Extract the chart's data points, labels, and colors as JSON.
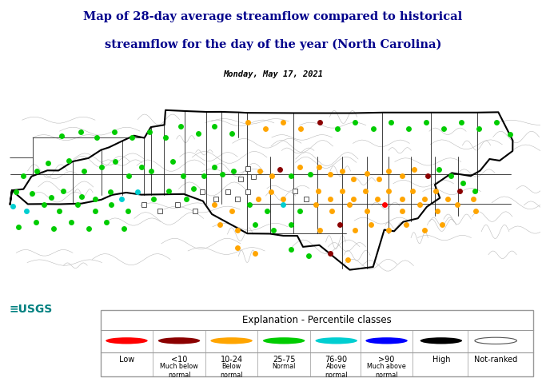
{
  "title_line1": "Map of 28-day average streamflow compared to historical",
  "title_line2": "streamflow for the day of the year (North Carolina)",
  "subtitle": "Monday, May 17, 2021",
  "title_color": "#00008B",
  "background_color": "#ffffff",
  "legend_title": "Explanation - Percentile classes",
  "legend_colors": [
    "#FF0000",
    "#8B0000",
    "#FFA500",
    "#00CC00",
    "#00CED1",
    "#0000FF",
    "#000000",
    "#ffffff"
  ],
  "legend_ranges": [
    "Low",
    "<10",
    "10-24",
    "25-75",
    "76-90",
    ">90",
    "High",
    "Not-ranked"
  ],
  "legend_descs": [
    "",
    "Much below\nnormal",
    "Below\nnormal",
    "Normal",
    "Above\nnormal",
    "Much above\nnormal",
    "",
    ""
  ],
  "map_xlim": [
    -84.4,
    -75.3
  ],
  "map_ylim": [
    33.6,
    36.7
  ],
  "stations": [
    {
      "lon": -84.1,
      "lat": 35.47,
      "color": "#00CC00"
    },
    {
      "lon": -83.87,
      "lat": 35.56,
      "color": "#00CC00"
    },
    {
      "lon": -83.68,
      "lat": 35.69,
      "color": "#00CC00"
    },
    {
      "lon": -83.32,
      "lat": 35.73,
      "color": "#00CC00"
    },
    {
      "lon": -83.06,
      "lat": 35.55,
      "color": "#00CC00"
    },
    {
      "lon": -82.77,
      "lat": 35.62,
      "color": "#00CC00"
    },
    {
      "lon": -82.54,
      "lat": 35.72,
      "color": "#00CC00"
    },
    {
      "lon": -82.3,
      "lat": 35.48,
      "color": "#00CC00"
    },
    {
      "lon": -82.08,
      "lat": 35.62,
      "color": "#00CC00"
    },
    {
      "lon": -81.92,
      "lat": 35.55,
      "color": "#00CC00"
    },
    {
      "lon": -81.55,
      "lat": 35.72,
      "color": "#00CC00"
    },
    {
      "lon": -81.38,
      "lat": 35.48,
      "color": "#00CC00"
    },
    {
      "lon": -81.2,
      "lat": 35.26,
      "color": "#00CC00"
    },
    {
      "lon": -81.02,
      "lat": 35.48,
      "color": "#00CC00"
    },
    {
      "lon": -80.85,
      "lat": 35.62,
      "color": "#00CC00"
    },
    {
      "lon": -80.72,
      "lat": 35.5,
      "color": "#00CC00"
    },
    {
      "lon": -80.52,
      "lat": 35.55,
      "color": "#00CC00"
    },
    {
      "lon": -80.4,
      "lat": 35.42,
      "color": "#ffffff"
    },
    {
      "lon": -80.28,
      "lat": 35.6,
      "color": "#ffffff"
    },
    {
      "lon": -80.18,
      "lat": 35.46,
      "color": "#ffffff"
    },
    {
      "lon": -80.07,
      "lat": 35.55,
      "color": "#FFA500"
    },
    {
      "lon": -79.87,
      "lat": 35.48,
      "color": "#FFA500"
    },
    {
      "lon": -79.73,
      "lat": 35.58,
      "color": "#8B0000"
    },
    {
      "lon": -79.55,
      "lat": 35.48,
      "color": "#00CC00"
    },
    {
      "lon": -79.4,
      "lat": 35.62,
      "color": "#FFA500"
    },
    {
      "lon": -79.22,
      "lat": 35.5,
      "color": "#00CC00"
    },
    {
      "lon": -79.07,
      "lat": 35.62,
      "color": "#FFA500"
    },
    {
      "lon": -78.88,
      "lat": 35.5,
      "color": "#FFA500"
    },
    {
      "lon": -78.68,
      "lat": 35.55,
      "color": "#FFA500"
    },
    {
      "lon": -78.48,
      "lat": 35.42,
      "color": "#FFA500"
    },
    {
      "lon": -78.25,
      "lat": 35.52,
      "color": "#FFA500"
    },
    {
      "lon": -78.05,
      "lat": 35.42,
      "color": "#FFA500"
    },
    {
      "lon": -77.88,
      "lat": 35.55,
      "color": "#FFA500"
    },
    {
      "lon": -77.65,
      "lat": 35.48,
      "color": "#FFA500"
    },
    {
      "lon": -77.45,
      "lat": 35.58,
      "color": "#FFA500"
    },
    {
      "lon": -77.22,
      "lat": 35.48,
      "color": "#8B0000"
    },
    {
      "lon": -77.03,
      "lat": 35.58,
      "color": "#00CC00"
    },
    {
      "lon": -76.82,
      "lat": 35.48,
      "color": "#00CC00"
    },
    {
      "lon": -76.62,
      "lat": 35.35,
      "color": "#00CC00"
    },
    {
      "lon": -76.42,
      "lat": 35.22,
      "color": "#00CC00"
    },
    {
      "lon": -84.22,
      "lat": 35.2,
      "color": "#00CC00"
    },
    {
      "lon": -83.95,
      "lat": 35.18,
      "color": "#00CC00"
    },
    {
      "lon": -83.62,
      "lat": 35.1,
      "color": "#00CC00"
    },
    {
      "lon": -83.42,
      "lat": 35.22,
      "color": "#00CC00"
    },
    {
      "lon": -83.1,
      "lat": 35.12,
      "color": "#00CC00"
    },
    {
      "lon": -82.88,
      "lat": 35.08,
      "color": "#00CC00"
    },
    {
      "lon": -82.62,
      "lat": 35.2,
      "color": "#00CC00"
    },
    {
      "lon": -82.42,
      "lat": 35.08,
      "color": "#00CED1"
    },
    {
      "lon": -82.15,
      "lat": 35.2,
      "color": "#00CED1"
    },
    {
      "lon": -81.88,
      "lat": 35.08,
      "color": "#00CC00"
    },
    {
      "lon": -81.62,
      "lat": 35.22,
      "color": "#00CC00"
    },
    {
      "lon": -81.32,
      "lat": 35.08,
      "color": "#00CC00"
    },
    {
      "lon": -81.05,
      "lat": 35.2,
      "color": "#ffffff"
    },
    {
      "lon": -80.82,
      "lat": 35.08,
      "color": "#ffffff"
    },
    {
      "lon": -80.62,
      "lat": 35.2,
      "color": "#ffffff"
    },
    {
      "lon": -80.45,
      "lat": 35.08,
      "color": "#ffffff"
    },
    {
      "lon": -80.28,
      "lat": 35.2,
      "color": "#ffffff"
    },
    {
      "lon": -80.1,
      "lat": 35.08,
      "color": "#FFA500"
    },
    {
      "lon": -79.88,
      "lat": 35.2,
      "color": "#FFA500"
    },
    {
      "lon": -79.68,
      "lat": 35.08,
      "color": "#FFA500"
    },
    {
      "lon": -79.48,
      "lat": 35.22,
      "color": "#ffffff"
    },
    {
      "lon": -79.28,
      "lat": 35.08,
      "color": "#ffffff"
    },
    {
      "lon": -79.08,
      "lat": 35.22,
      "color": "#FFA500"
    },
    {
      "lon": -78.88,
      "lat": 35.08,
      "color": "#FFA500"
    },
    {
      "lon": -78.68,
      "lat": 35.22,
      "color": "#FFA500"
    },
    {
      "lon": -78.48,
      "lat": 35.08,
      "color": "#FFA500"
    },
    {
      "lon": -78.28,
      "lat": 35.22,
      "color": "#FFA500"
    },
    {
      "lon": -78.08,
      "lat": 35.08,
      "color": "#FFA500"
    },
    {
      "lon": -77.88,
      "lat": 35.22,
      "color": "#FFA500"
    },
    {
      "lon": -77.65,
      "lat": 35.08,
      "color": "#FFA500"
    },
    {
      "lon": -77.48,
      "lat": 35.22,
      "color": "#FFA500"
    },
    {
      "lon": -77.28,
      "lat": 35.08,
      "color": "#FFA500"
    },
    {
      "lon": -77.08,
      "lat": 35.22,
      "color": "#FFA500"
    },
    {
      "lon": -76.88,
      "lat": 35.08,
      "color": "#FFA500"
    },
    {
      "lon": -76.68,
      "lat": 35.22,
      "color": "#8B0000"
    },
    {
      "lon": -76.45,
      "lat": 35.08,
      "color": "#FFA500"
    },
    {
      "lon": -84.28,
      "lat": 34.95,
      "color": "#00CED1"
    },
    {
      "lon": -84.05,
      "lat": 34.88,
      "color": "#00CED1"
    },
    {
      "lon": -83.75,
      "lat": 34.98,
      "color": "#00CC00"
    },
    {
      "lon": -83.48,
      "lat": 34.88,
      "color": "#00CC00"
    },
    {
      "lon": -83.18,
      "lat": 34.98,
      "color": "#00CC00"
    },
    {
      "lon": -82.88,
      "lat": 34.88,
      "color": "#00CC00"
    },
    {
      "lon": -82.6,
      "lat": 34.98,
      "color": "#00CC00"
    },
    {
      "lon": -82.32,
      "lat": 34.88,
      "color": "#00CC00"
    },
    {
      "lon": -82.05,
      "lat": 34.98,
      "color": "#ffffff"
    },
    {
      "lon": -81.78,
      "lat": 34.88,
      "color": "#ffffff"
    },
    {
      "lon": -81.48,
      "lat": 34.98,
      "color": "#ffffff"
    },
    {
      "lon": -81.18,
      "lat": 34.88,
      "color": "#ffffff"
    },
    {
      "lon": -80.85,
      "lat": 34.98,
      "color": "#FFA500"
    },
    {
      "lon": -80.55,
      "lat": 34.88,
      "color": "#FFA500"
    },
    {
      "lon": -80.25,
      "lat": 34.98,
      "color": "#00CC00"
    },
    {
      "lon": -79.95,
      "lat": 34.88,
      "color": "#00CC00"
    },
    {
      "lon": -79.68,
      "lat": 34.98,
      "color": "#00CED1"
    },
    {
      "lon": -79.4,
      "lat": 34.88,
      "color": "#00CC00"
    },
    {
      "lon": -79.12,
      "lat": 34.98,
      "color": "#FFA500"
    },
    {
      "lon": -78.85,
      "lat": 34.88,
      "color": "#FFA500"
    },
    {
      "lon": -78.55,
      "lat": 34.98,
      "color": "#FFA500"
    },
    {
      "lon": -78.25,
      "lat": 34.88,
      "color": "#FFA500"
    },
    {
      "lon": -77.95,
      "lat": 34.98,
      "color": "#FF0000"
    },
    {
      "lon": -77.65,
      "lat": 34.88,
      "color": "#FFA500"
    },
    {
      "lon": -77.35,
      "lat": 34.98,
      "color": "#FFA500"
    },
    {
      "lon": -77.05,
      "lat": 34.88,
      "color": "#FFA500"
    },
    {
      "lon": -76.72,
      "lat": 34.98,
      "color": "#FFA500"
    },
    {
      "lon": -76.4,
      "lat": 34.88,
      "color": "#FFA500"
    },
    {
      "lon": -84.18,
      "lat": 34.6,
      "color": "#00CC00"
    },
    {
      "lon": -83.88,
      "lat": 34.68,
      "color": "#00CC00"
    },
    {
      "lon": -83.58,
      "lat": 34.58,
      "color": "#00CC00"
    },
    {
      "lon": -83.28,
      "lat": 34.68,
      "color": "#00CC00"
    },
    {
      "lon": -82.98,
      "lat": 34.58,
      "color": "#00CC00"
    },
    {
      "lon": -82.68,
      "lat": 34.68,
      "color": "#00CC00"
    },
    {
      "lon": -82.38,
      "lat": 34.58,
      "color": "#00CC00"
    },
    {
      "lon": -80.75,
      "lat": 34.65,
      "color": "#FFA500"
    },
    {
      "lon": -80.45,
      "lat": 34.55,
      "color": "#FFA500"
    },
    {
      "lon": -80.15,
      "lat": 34.65,
      "color": "#00CC00"
    },
    {
      "lon": -79.85,
      "lat": 34.55,
      "color": "#00CC00"
    },
    {
      "lon": -79.55,
      "lat": 34.65,
      "color": "#00CC00"
    },
    {
      "lon": -79.05,
      "lat": 34.55,
      "color": "#FFA500"
    },
    {
      "lon": -78.72,
      "lat": 34.65,
      "color": "#8B0000"
    },
    {
      "lon": -78.45,
      "lat": 34.55,
      "color": "#FFA500"
    },
    {
      "lon": -78.18,
      "lat": 34.65,
      "color": "#FFA500"
    },
    {
      "lon": -77.88,
      "lat": 34.55,
      "color": "#FFA500"
    },
    {
      "lon": -77.58,
      "lat": 34.65,
      "color": "#FFA500"
    },
    {
      "lon": -77.28,
      "lat": 34.55,
      "color": "#FFA500"
    },
    {
      "lon": -76.98,
      "lat": 34.65,
      "color": "#FFA500"
    },
    {
      "lon": -78.88,
      "lat": 34.15,
      "color": "#8B0000"
    },
    {
      "lon": -78.58,
      "lat": 34.05,
      "color": "#FFA500"
    },
    {
      "lon": -79.55,
      "lat": 34.22,
      "color": "#00CC00"
    },
    {
      "lon": -79.25,
      "lat": 34.12,
      "color": "#00CC00"
    },
    {
      "lon": -80.45,
      "lat": 34.25,
      "color": "#FFA500"
    },
    {
      "lon": -80.15,
      "lat": 34.15,
      "color": "#FFA500"
    },
    {
      "lon": -83.45,
      "lat": 36.15,
      "color": "#00CC00"
    },
    {
      "lon": -83.12,
      "lat": 36.22,
      "color": "#00CC00"
    },
    {
      "lon": -82.85,
      "lat": 36.12,
      "color": "#00CC00"
    },
    {
      "lon": -82.55,
      "lat": 36.22,
      "color": "#00CC00"
    },
    {
      "lon": -82.25,
      "lat": 36.12,
      "color": "#00CC00"
    },
    {
      "lon": -81.95,
      "lat": 36.22,
      "color": "#00CC00"
    },
    {
      "lon": -81.68,
      "lat": 36.12,
      "color": "#00CC00"
    },
    {
      "lon": -81.42,
      "lat": 36.32,
      "color": "#00CC00"
    },
    {
      "lon": -81.12,
      "lat": 36.2,
      "color": "#00CC00"
    },
    {
      "lon": -80.85,
      "lat": 36.32,
      "color": "#00CC00"
    },
    {
      "lon": -80.55,
      "lat": 36.2,
      "color": "#00CC00"
    },
    {
      "lon": -80.28,
      "lat": 36.38,
      "color": "#FFA500"
    },
    {
      "lon": -79.98,
      "lat": 36.28,
      "color": "#FFA500"
    },
    {
      "lon": -79.68,
      "lat": 36.38,
      "color": "#FFA500"
    },
    {
      "lon": -79.38,
      "lat": 36.28,
      "color": "#FFA500"
    },
    {
      "lon": -79.05,
      "lat": 36.38,
      "color": "#8B0000"
    },
    {
      "lon": -78.75,
      "lat": 36.28,
      "color": "#00CC00"
    },
    {
      "lon": -78.45,
      "lat": 36.38,
      "color": "#00CC00"
    },
    {
      "lon": -78.15,
      "lat": 36.28,
      "color": "#00CC00"
    },
    {
      "lon": -77.85,
      "lat": 36.38,
      "color": "#00CC00"
    },
    {
      "lon": -77.55,
      "lat": 36.28,
      "color": "#00CC00"
    },
    {
      "lon": -77.25,
      "lat": 36.38,
      "color": "#00CC00"
    },
    {
      "lon": -76.95,
      "lat": 36.28,
      "color": "#00CC00"
    },
    {
      "lon": -76.65,
      "lat": 36.38,
      "color": "#00CC00"
    },
    {
      "lon": -76.35,
      "lat": 36.28,
      "color": "#00CC00"
    },
    {
      "lon": -76.05,
      "lat": 36.38,
      "color": "#00CC00"
    },
    {
      "lon": -75.82,
      "lat": 36.18,
      "color": "#00CC00"
    }
  ]
}
